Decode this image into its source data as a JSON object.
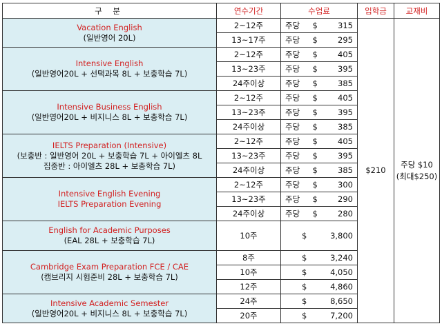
{
  "header": {
    "category": "구 분",
    "duration": "연수기간",
    "tuition": "수업료",
    "enrollment": "입학금",
    "textbook": "교재비"
  },
  "enrollment_fee": "$210",
  "textbook_fee": {
    "line1": "주당 $10",
    "line2": "(최대$250)"
  },
  "courses": [
    {
      "title_lines": [
        "Vacation English"
      ],
      "sub_lines": [
        "(일반영어 20L)"
      ],
      "rows": [
        {
          "duration": "2~12주",
          "unit": "주당",
          "currency": "$",
          "amount": "315"
        },
        {
          "duration": "13~17주",
          "unit": "주당",
          "currency": "$",
          "amount": "295"
        }
      ]
    },
    {
      "title_lines": [
        "Intensive English"
      ],
      "sub_lines": [
        "(일반영어20L + 선택과목 8L + 보충학습 7L)"
      ],
      "rows": [
        {
          "duration": "2~12주",
          "unit": "주당",
          "currency": "$",
          "amount": "405"
        },
        {
          "duration": "13~23주",
          "unit": "주당",
          "currency": "$",
          "amount": "395"
        },
        {
          "duration": "24주이상",
          "unit": "주당",
          "currency": "$",
          "amount": "385"
        }
      ]
    },
    {
      "title_lines": [
        "Intensive Business English"
      ],
      "sub_lines": [
        "(일반영어20L + 비지니스 8L + 보충학습 7L)"
      ],
      "rows": [
        {
          "duration": "2~12주",
          "unit": "주당",
          "currency": "$",
          "amount": "405"
        },
        {
          "duration": "13~23주",
          "unit": "주당",
          "currency": "$",
          "amount": "395"
        },
        {
          "duration": "24주이상",
          "unit": "주당",
          "currency": "$",
          "amount": "385"
        }
      ]
    },
    {
      "title_lines": [
        "IELTS Preparation (Intensive)"
      ],
      "sub_lines": [
        "(보충반 : 일반영어 20L + 보충학습 7L + 아이엘츠 8L",
        "집중반 : 아이엘츠 28L + 보충학습 7L)"
      ],
      "rows": [
        {
          "duration": "2~12주",
          "unit": "주당",
          "currency": "$",
          "amount": "405"
        },
        {
          "duration": "13~23주",
          "unit": "주당",
          "currency": "$",
          "amount": "395"
        },
        {
          "duration": "24주이상",
          "unit": "주당",
          "currency": "$",
          "amount": "385"
        }
      ]
    },
    {
      "title_lines": [
        "Intensive English Evening",
        "IELTS Preparation Evening"
      ],
      "sub_lines": [],
      "rows": [
        {
          "duration": "2~12주",
          "unit": "주당",
          "currency": "$",
          "amount": "300"
        },
        {
          "duration": "13~23주",
          "unit": "주당",
          "currency": "$",
          "amount": "290"
        },
        {
          "duration": "24주이상",
          "unit": "주당",
          "currency": "$",
          "amount": "280"
        }
      ]
    },
    {
      "title_lines": [
        "English for Academic Purposes"
      ],
      "sub_lines": [
        "(EAL 28L + 보충학습 7L)"
      ],
      "rows": [
        {
          "duration": "10주",
          "unit": "",
          "currency": "$",
          "amount": "3,800"
        }
      ]
    },
    {
      "title_lines": [
        "Cambridge Exam Preparation FCE / CAE"
      ],
      "sub_lines": [
        "(캠브리지 시험준비 28L + 보충학습 7L)"
      ],
      "rows": [
        {
          "duration": "8주",
          "unit": "",
          "currency": "$",
          "amount": "3,240"
        },
        {
          "duration": "10주",
          "unit": "",
          "currency": "$",
          "amount": "4,050"
        },
        {
          "duration": "12주",
          "unit": "",
          "currency": "$",
          "amount": "4,860"
        }
      ]
    },
    {
      "title_lines": [
        "Intensive Academic Semester"
      ],
      "sub_lines": [
        "(일반영어20L + 비지니스 8L + 보충학습 7L)"
      ],
      "rows": [
        {
          "duration": "24주",
          "unit": "",
          "currency": "$",
          "amount": "8,650"
        },
        {
          "duration": "20주",
          "unit": "",
          "currency": "$",
          "amount": "7,200"
        }
      ]
    }
  ]
}
